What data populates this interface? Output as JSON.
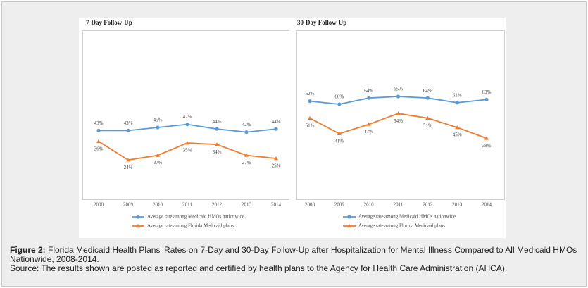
{
  "chart_data": [
    {
      "type": "line",
      "title": "7-Day Follow-Up",
      "categories": [
        "2008",
        "2009",
        "2010",
        "2011",
        "2012",
        "2013",
        "2014"
      ],
      "ylim": [
        0,
        100
      ],
      "series": [
        {
          "name": "Average rate among Medicaid HMOs nationwide",
          "color": "#5b9bd5",
          "values": [
            43,
            43,
            45,
            47,
            44,
            42,
            44
          ],
          "value_labels": [
            "43%",
            "43%",
            "45%",
            "47%",
            "44%",
            "42%",
            "44%"
          ]
        },
        {
          "name": "Average rate among Florida Medicaid plans",
          "color": "#ed7d31",
          "values": [
            36,
            24,
            27,
            35,
            34,
            27,
            25
          ],
          "value_labels": [
            "36%",
            "24%",
            "27%",
            "35%",
            "34%",
            "27%",
            "25%"
          ]
        }
      ]
    },
    {
      "type": "line",
      "title": "30-Day Follow-Up",
      "categories": [
        "2008",
        "2009",
        "2010",
        "2011",
        "2012",
        "2013",
        "2014"
      ],
      "ylim": [
        0,
        100
      ],
      "series": [
        {
          "name": "Average rate among Medicaid HMOs nationwide",
          "color": "#5b9bd5",
          "values": [
            62,
            60,
            64,
            65,
            64,
            61,
            63
          ],
          "value_labels": [
            "62%",
            "60%",
            "64%",
            "65%",
            "64%",
            "61%",
            "63%"
          ]
        },
        {
          "name": "Average rate among Florida Medicaid plans",
          "color": "#ed7d31",
          "values": [
            51,
            41,
            47,
            54,
            51,
            45,
            38
          ],
          "value_labels": [
            "51%",
            "41%",
            "47%",
            "54%",
            "51%",
            "45%",
            "38%"
          ]
        }
      ]
    }
  ],
  "caption": {
    "label": "Figure 2:",
    "text": "Florida Medicaid Health Plans' Rates on 7-Day and 30-Day Follow-Up after Hospitalization for Mental Illness Compared to All Medicaid HMOs Nationwide, 2008-2014.",
    "source": "Source: The results shown are posted as reported and certified by health plans to the Agency for Health Care Administration (AHCA)."
  }
}
